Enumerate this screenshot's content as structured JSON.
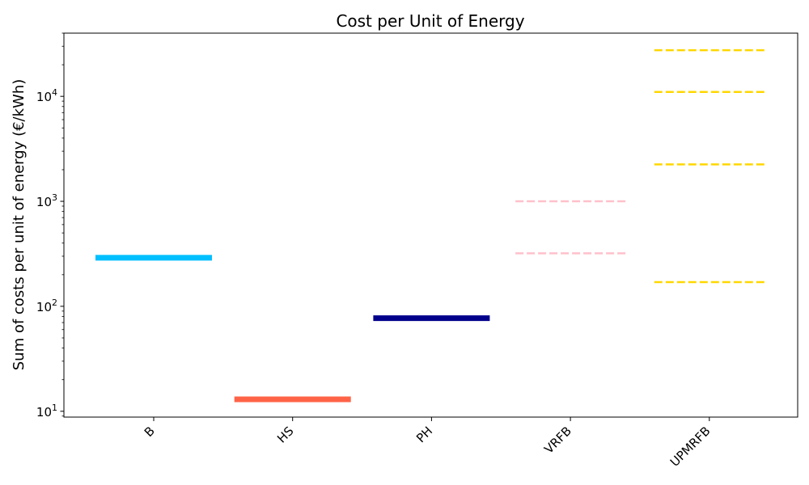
{
  "chart_data": {
    "type": "line",
    "title": "Cost per Unit of Energy",
    "xlabel": "",
    "ylabel": "Sum of costs per unit of energy (€/kWh)",
    "yscale": "log",
    "ylim": [
      8.8,
      40000
    ],
    "categories": [
      "B",
      "HS",
      "PH",
      "VRFB",
      "UPMRFB"
    ],
    "y_ticks": [
      {
        "value": 10,
        "base": "10",
        "exp": "1"
      },
      {
        "value": 100,
        "base": "10",
        "exp": "2"
      },
      {
        "value": 1000,
        "base": "10",
        "exp": "3"
      },
      {
        "value": 10000,
        "base": "10",
        "exp": "4"
      }
    ],
    "segments": [
      {
        "category": "B",
        "value": 290,
        "color": "#00BFFF",
        "style": "solid"
      },
      {
        "category": "HS",
        "value": 13,
        "color": "#FF6347",
        "style": "solid"
      },
      {
        "category": "PH",
        "value": 77,
        "color": "#00008B",
        "style": "solid"
      },
      {
        "category": "VRFB",
        "value": 1000,
        "color": "#FFC0CB",
        "style": "dashed"
      },
      {
        "category": "VRFB",
        "value": 320,
        "color": "#FFC0CB",
        "style": "dashed"
      },
      {
        "category": "UPMRFB",
        "value": 27500,
        "color": "#FFD700",
        "style": "dashed"
      },
      {
        "category": "UPMRFB",
        "value": 11000,
        "color": "#FFD700",
        "style": "dashed"
      },
      {
        "category": "UPMRFB",
        "value": 2250,
        "color": "#FFD700",
        "style": "dashed"
      },
      {
        "category": "UPMRFB",
        "value": 170,
        "color": "#FFD700",
        "style": "dashed"
      }
    ],
    "grid": false,
    "legend": "none"
  }
}
